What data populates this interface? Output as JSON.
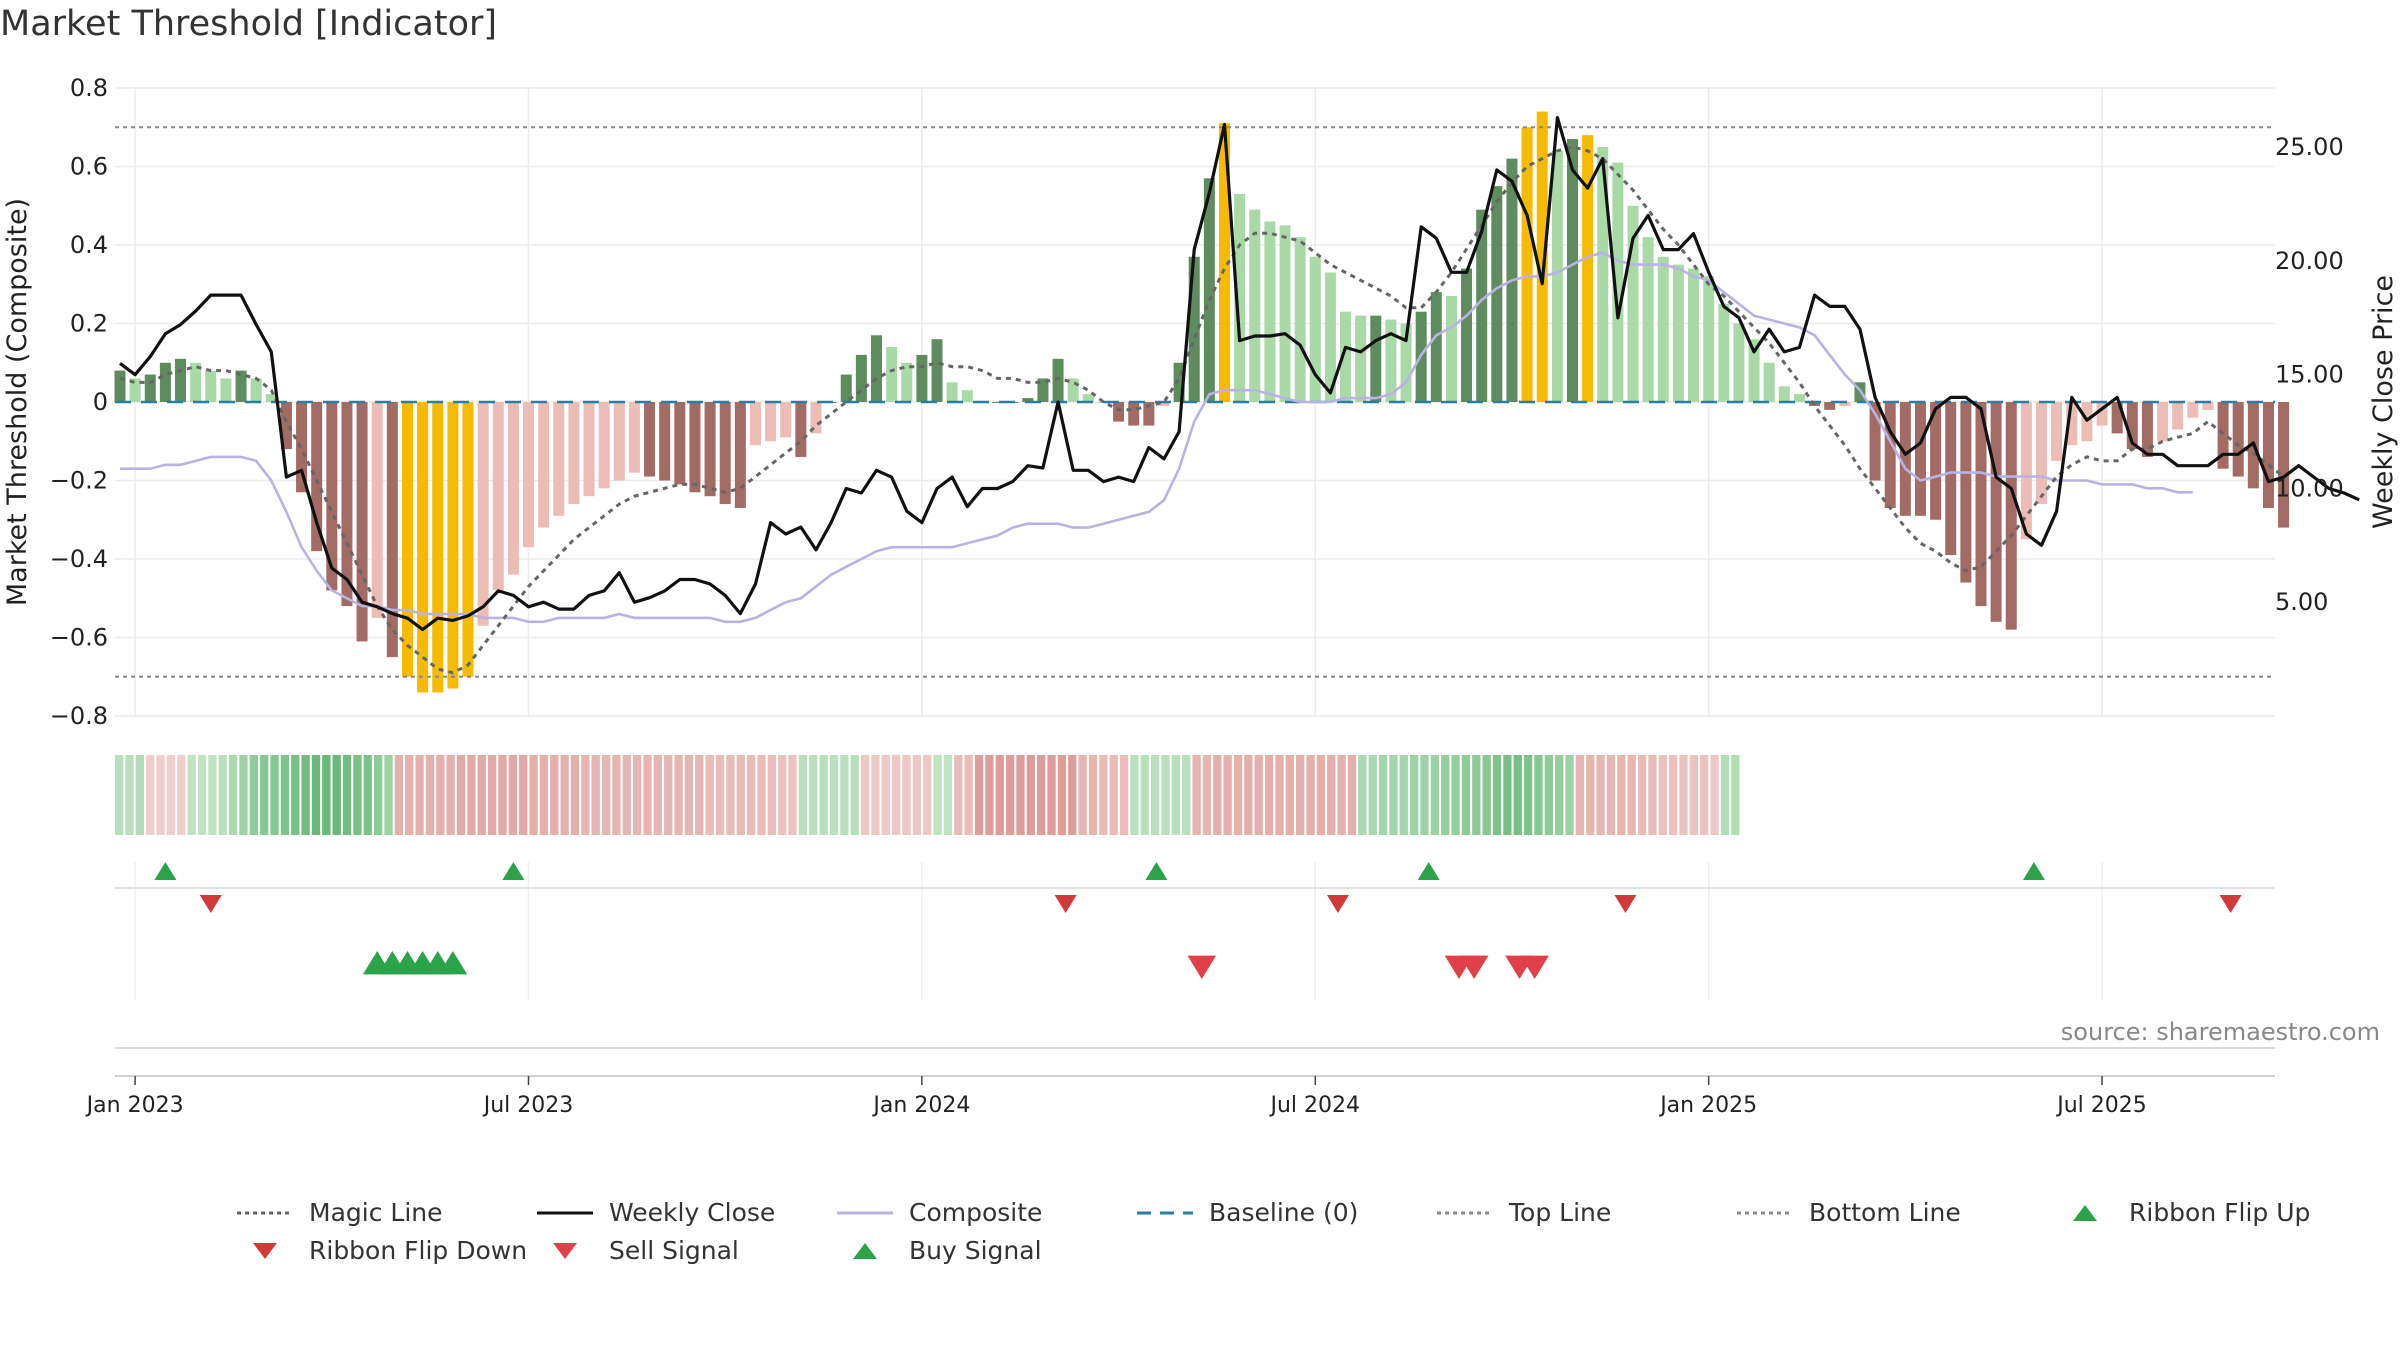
{
  "title": "Market Threshold [Indicator]",
  "source": "source: sharemaestro.com",
  "chart_data": {
    "type": "bar",
    "title": "Market Threshold [Indicator]",
    "ylabel": "Market Threshold (Composite)",
    "y2label": "Weekly Close Price",
    "ylim": [
      -0.8,
      0.8
    ],
    "y2lim": [
      0,
      27.6
    ],
    "yticks": [
      0.8,
      0.6,
      0.4,
      0.2,
      0,
      -0.2,
      -0.4,
      -0.6,
      -0.8
    ],
    "ytick_labels": [
      "0.8",
      "0.6",
      "0.4",
      "0.2",
      "0",
      "−0.2",
      "−0.4",
      "−0.6",
      "−0.8"
    ],
    "y2ticks": [
      25,
      20,
      15,
      10,
      5
    ],
    "y2tick_labels": [
      "25.00",
      "20.00",
      "15.00",
      "10.00",
      "5.00"
    ],
    "x_start_week_of_2023": 0,
    "xticks": [
      {
        "label": "Jan 2023",
        "week": 1
      },
      {
        "label": "Jul 2023",
        "week": 27
      },
      {
        "label": "Jan 2024",
        "week": 53
      },
      {
        "label": "Jul 2024",
        "week": 79
      },
      {
        "label": "Jan 2025",
        "week": 105
      },
      {
        "label": "Jul 2025",
        "week": 131
      }
    ],
    "top_line": 0.7,
    "bottom_line": -0.7,
    "composite_bars": [
      0.08,
      0.06,
      0.07,
      0.1,
      0.11,
      0.1,
      0.08,
      0.06,
      0.08,
      0.06,
      0.02,
      -0.12,
      -0.23,
      -0.38,
      -0.48,
      -0.52,
      -0.61,
      -0.55,
      -0.65,
      -0.7,
      -0.74,
      -0.74,
      -0.73,
      -0.7,
      -0.57,
      -0.48,
      -0.44,
      -0.37,
      -0.32,
      -0.29,
      -0.26,
      -0.24,
      -0.22,
      -0.2,
      -0.18,
      -0.19,
      -0.2,
      -0.21,
      -0.23,
      -0.24,
      -0.26,
      -0.27,
      -0.11,
      -0.1,
      -0.09,
      -0.14,
      -0.08,
      0.0,
      0.07,
      0.12,
      0.17,
      0.14,
      0.1,
      0.12,
      0.16,
      0.05,
      0.03,
      0.0,
      0.0,
      0.0,
      0.01,
      0.06,
      0.11,
      0.06,
      0.02,
      0.0,
      -0.05,
      -0.06,
      -0.06,
      -0.01,
      0.1,
      0.37,
      0.57,
      0.71,
      0.53,
      0.49,
      0.46,
      0.45,
      0.42,
      0.37,
      0.33,
      0.23,
      0.22,
      0.22,
      0.21,
      0.2,
      0.23,
      0.28,
      0.27,
      0.34,
      0.49,
      0.55,
      0.62,
      0.7,
      0.74,
      0.64,
      0.67,
      0.68,
      0.65,
      0.61,
      0.5,
      0.42,
      0.37,
      0.35,
      0.34,
      0.32,
      0.25,
      0.2,
      0.16,
      0.1,
      0.04,
      0.02,
      -0.01,
      -0.02,
      -0.01,
      0.05,
      -0.2,
      -0.27,
      -0.29,
      -0.29,
      -0.3,
      -0.39,
      -0.46,
      -0.52,
      -0.56,
      -0.58,
      -0.35,
      -0.26,
      -0.15,
      -0.11,
      -0.1,
      -0.06,
      -0.08,
      -0.12,
      -0.14,
      -0.1,
      -0.07,
      -0.04,
      -0.02,
      -0.17,
      -0.19,
      -0.22,
      -0.27,
      -0.32
    ],
    "weekly_close": [
      15.5,
      15.0,
      15.8,
      16.8,
      17.2,
      17.8,
      18.5,
      18.5,
      18.5,
      17.2,
      16.0,
      10.5,
      10.8,
      8.5,
      6.5,
      6.0,
      5.0,
      4.8,
      4.5,
      4.3,
      3.8,
      4.3,
      4.2,
      4.4,
      4.8,
      5.5,
      5.3,
      4.8,
      5.0,
      4.7,
      4.7,
      5.3,
      5.5,
      6.3,
      5.0,
      5.2,
      5.5,
      6.0,
      6.0,
      5.8,
      5.3,
      4.5,
      5.8,
      8.5,
      8.0,
      8.3,
      7.3,
      8.5,
      10.0,
      9.8,
      10.8,
      10.5,
      9.0,
      8.5,
      10.0,
      10.5,
      9.2,
      10.0,
      10.0,
      10.3,
      11.0,
      10.9,
      13.8,
      10.8,
      10.8,
      10.3,
      10.5,
      10.3,
      11.8,
      11.3,
      12.5,
      20.5,
      23.0,
      26.0,
      16.5,
      16.7,
      16.7,
      16.8,
      16.3,
      15.0,
      14.2,
      16.2,
      16.0,
      16.5,
      16.8,
      16.5,
      21.5,
      21.0,
      19.5,
      19.5,
      21.3,
      24.0,
      23.5,
      22.0,
      19.0,
      26.3,
      24.0,
      23.2,
      24.5,
      17.5,
      21.0,
      22.0,
      20.5,
      20.5,
      21.2,
      19.5,
      18.0,
      17.5,
      16.0,
      17.0,
      16.0,
      16.2,
      18.5,
      18.0,
      18.0,
      17.0,
      14.0,
      12.5,
      11.5,
      12.0,
      13.5,
      14.0,
      14.0,
      13.5,
      10.5,
      10.0,
      8.0,
      7.5,
      9.0,
      14.0,
      13.0,
      13.5,
      14.0,
      12.0,
      11.5,
      11.5,
      11.0,
      11.0,
      11.0,
      11.5,
      11.5,
      12.0,
      10.3,
      10.5,
      11.0,
      10.5,
      10.0,
      9.8,
      9.5
    ],
    "magic_line": [
      0.06,
      0.05,
      0.05,
      0.07,
      0.08,
      0.09,
      0.08,
      0.08,
      0.07,
      0.06,
      0.03,
      -0.05,
      -0.12,
      -0.2,
      -0.28,
      -0.36,
      -0.44,
      -0.52,
      -0.58,
      -0.62,
      -0.65,
      -0.68,
      -0.69,
      -0.67,
      -0.62,
      -0.57,
      -0.52,
      -0.47,
      -0.43,
      -0.39,
      -0.35,
      -0.32,
      -0.29,
      -0.26,
      -0.24,
      -0.23,
      -0.22,
      -0.21,
      -0.21,
      -0.22,
      -0.23,
      -0.22,
      -0.19,
      -0.16,
      -0.13,
      -0.1,
      -0.06,
      -0.03,
      0.0,
      0.03,
      0.06,
      0.08,
      0.09,
      0.09,
      0.1,
      0.09,
      0.09,
      0.08,
      0.06,
      0.06,
      0.05,
      0.05,
      0.06,
      0.05,
      0.03,
      0.0,
      -0.02,
      -0.02,
      -0.01,
      0.0,
      0.06,
      0.16,
      0.26,
      0.34,
      0.4,
      0.43,
      0.43,
      0.42,
      0.41,
      0.38,
      0.35,
      0.33,
      0.31,
      0.29,
      0.27,
      0.24,
      0.24,
      0.28,
      0.33,
      0.39,
      0.45,
      0.51,
      0.56,
      0.6,
      0.62,
      0.64,
      0.65,
      0.64,
      0.62,
      0.58,
      0.54,
      0.49,
      0.44,
      0.4,
      0.35,
      0.3,
      0.27,
      0.23,
      0.19,
      0.15,
      0.1,
      0.05,
      -0.01,
      -0.06,
      -0.11,
      -0.17,
      -0.22,
      -0.27,
      -0.32,
      -0.36,
      -0.38,
      -0.41,
      -0.43,
      -0.42,
      -0.38,
      -0.34,
      -0.29,
      -0.24,
      -0.19,
      -0.16,
      -0.14,
      -0.15,
      -0.15,
      -0.12,
      -0.12,
      -0.1,
      -0.09,
      -0.08,
      -0.05,
      -0.08,
      -0.11,
      -0.13,
      -0.16,
      -0.19
    ],
    "composite_line": [
      -0.17,
      -0.17,
      -0.17,
      -0.16,
      -0.16,
      -0.15,
      -0.14,
      -0.14,
      -0.14,
      -0.15,
      -0.2,
      -0.28,
      -0.37,
      -0.43,
      -0.48,
      -0.5,
      -0.52,
      -0.52,
      -0.53,
      -0.53,
      -0.54,
      -0.54,
      -0.54,
      -0.54,
      -0.55,
      -0.55,
      -0.55,
      -0.56,
      -0.56,
      -0.55,
      -0.55,
      -0.55,
      -0.55,
      -0.54,
      -0.55,
      -0.55,
      -0.55,
      -0.55,
      -0.55,
      -0.55,
      -0.56,
      -0.56,
      -0.55,
      -0.53,
      -0.51,
      -0.5,
      -0.47,
      -0.44,
      -0.42,
      -0.4,
      -0.38,
      -0.37,
      -0.37,
      -0.37,
      -0.37,
      -0.37,
      -0.36,
      -0.35,
      -0.34,
      -0.32,
      -0.31,
      -0.31,
      -0.31,
      -0.32,
      -0.32,
      -0.31,
      -0.3,
      -0.29,
      -0.28,
      -0.25,
      -0.17,
      -0.05,
      0.02,
      0.03,
      0.03,
      0.03,
      0.02,
      0.01,
      0.0,
      0.0,
      0.0,
      0.01,
      0.01,
      0.01,
      0.02,
      0.05,
      0.12,
      0.17,
      0.19,
      0.22,
      0.26,
      0.29,
      0.31,
      0.32,
      0.32,
      0.33,
      0.35,
      0.37,
      0.38,
      0.36,
      0.35,
      0.35,
      0.35,
      0.34,
      0.32,
      0.31,
      0.28,
      0.25,
      0.22,
      0.21,
      0.2,
      0.19,
      0.17,
      0.12,
      0.07,
      0.03,
      -0.03,
      -0.1,
      -0.17,
      -0.2,
      -0.19,
      -0.18,
      -0.18,
      -0.18,
      -0.19,
      -0.19,
      -0.19,
      -0.19,
      -0.2,
      -0.2,
      -0.2,
      -0.21,
      -0.21,
      -0.21,
      -0.22,
      -0.22,
      -0.23,
      -0.23
    ],
    "ribbon": [
      0.2,
      0.2,
      0.25,
      -0.1,
      -0.1,
      -0.1,
      -0.1,
      0.15,
      0.15,
      0.15,
      0.2,
      0.3,
      0.4,
      0.5,
      0.55,
      0.55,
      0.6,
      0.65,
      0.7,
      0.75,
      0.75,
      0.75,
      0.7,
      0.65,
      0.6,
      0.5,
      0.4,
      -0.35,
      -0.35,
      -0.35,
      -0.35,
      -0.35,
      -0.35,
      -0.4,
      -0.4,
      -0.4,
      -0.4,
      -0.4,
      -0.4,
      -0.4,
      -0.35,
      -0.35,
      -0.35,
      -0.35,
      -0.35,
      -0.3,
      -0.3,
      -0.3,
      -0.3,
      -0.3,
      -0.3,
      -0.3,
      -0.3,
      -0.3,
      -0.3,
      -0.3,
      -0.3,
      -0.25,
      -0.25,
      -0.25,
      -0.25,
      -0.25,
      -0.25,
      -0.25,
      -0.2,
      -0.2,
      0.2,
      0.2,
      0.2,
      0.2,
      0.2,
      0.2,
      -0.15,
      -0.15,
      -0.15,
      -0.15,
      -0.15,
      -0.15,
      -0.15,
      0.15,
      0.15,
      -0.25,
      -0.25,
      -0.5,
      -0.5,
      -0.5,
      -0.5,
      -0.5,
      -0.5,
      -0.5,
      -0.5,
      -0.5,
      -0.5,
      -0.3,
      -0.3,
      -0.25,
      -0.25,
      -0.25,
      0.2,
      0.2,
      0.2,
      0.2,
      0.2,
      0.2,
      -0.3,
      -0.3,
      -0.35,
      -0.35,
      -0.35,
      -0.35,
      -0.35,
      -0.35,
      -0.35,
      -0.35,
      -0.35,
      -0.35,
      -0.35,
      -0.35,
      -0.35,
      -0.35,
      0.3,
      0.3,
      0.35,
      0.35,
      0.35,
      0.4,
      0.4,
      0.4,
      0.45,
      0.45,
      0.5,
      0.5,
      0.55,
      0.6,
      0.65,
      0.65,
      0.6,
      0.55,
      0.5,
      0.45,
      0.4,
      -0.3,
      -0.3,
      -0.3,
      -0.3,
      -0.3,
      -0.3,
      -0.25,
      -0.25,
      -0.2,
      -0.2,
      -0.2,
      -0.2,
      -0.2,
      -0.15,
      0.25,
      0.25
    ],
    "signals": [
      {
        "type": "ribbon_flip_up",
        "weeks": [
          3,
          26,
          68.5,
          86.5,
          126.5
        ]
      },
      {
        "type": "ribbon_flip_down",
        "weeks": [
          6,
          62.5,
          80.5,
          99.5,
          139.5
        ]
      },
      {
        "type": "buy",
        "weeks": [
          17,
          18,
          19,
          20,
          21,
          22
        ]
      },
      {
        "type": "sell",
        "weeks": [
          71.5,
          88.5,
          89.5,
          92.5,
          93.5
        ]
      }
    ]
  },
  "legend": [
    {
      "label": "Magic Line",
      "icon": "dotted-line",
      "color": "#666666"
    },
    {
      "label": "Weekly Close",
      "icon": "solid-line",
      "color": "#111111"
    },
    {
      "label": "Composite",
      "icon": "solid-line",
      "color": "#b9b3e3"
    },
    {
      "label": "Baseline (0)",
      "icon": "dashed-line",
      "color": "#2a7ea3"
    },
    {
      "label": "Top Line",
      "icon": "dotted-line",
      "color": "#888888"
    },
    {
      "label": "Bottom Line",
      "icon": "dotted-line",
      "color": "#888888"
    },
    {
      "label": "Ribbon Flip Up",
      "icon": "triangle-up",
      "color": "#2ca24a"
    },
    {
      "label": "Ribbon Flip Down",
      "icon": "triangle-down",
      "color": "#d03a3a"
    },
    {
      "label": "Sell Signal",
      "icon": "triangle-down",
      "color": "#e0404a"
    },
    {
      "label": "Buy Signal",
      "icon": "triangle-up",
      "color": "#2ca24a"
    }
  ],
  "colors": {
    "positive_dark": "#5e8c5e",
    "positive_light": "#a8d9a6",
    "negative_dark": "#a26b65",
    "negative_light": "#ecbcb6",
    "extreme": "#f6bb00",
    "grid": "#ececec",
    "baseline": "#2a7ea3"
  }
}
